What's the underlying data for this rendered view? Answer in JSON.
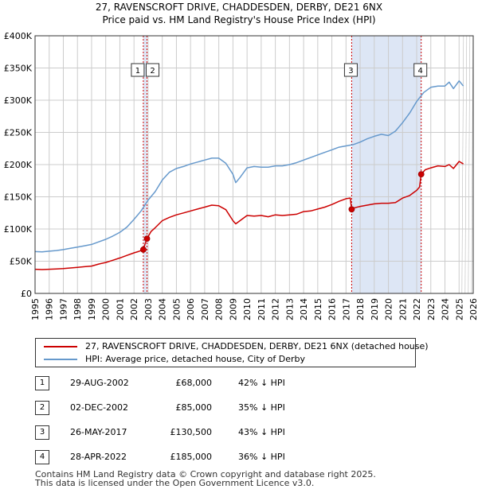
{
  "title_line1": "27, RAVENSCROFT DRIVE, CHADDESDEN, DERBY, DE21 6NX",
  "title_line2": "Price paid vs. HM Land Registry's House Price Index (HPI)",
  "colors": {
    "property": "#cc0000",
    "hpi": "#6699cc",
    "shade": "#dde6f5",
    "grid": "#cccccc",
    "vline": "#cc0000"
  },
  "legend": {
    "property_label": "27, RAVENSCROFT DRIVE, CHADDESDEN, DERBY, DE21 6NX (detached house)",
    "hpi_label": "HPI: Average price, detached house, City of Derby"
  },
  "sales": [
    {
      "num": "1",
      "date": "29-AUG-2002",
      "price": "£68,000",
      "hpi": "42% ↓ HPI"
    },
    {
      "num": "2",
      "date": "02-DEC-2002",
      "price": "£85,000",
      "hpi": "35% ↓ HPI"
    },
    {
      "num": "3",
      "date": "26-MAY-2017",
      "price": "£130,500",
      "hpi": "43% ↓ HPI"
    },
    {
      "num": "4",
      "date": "28-APR-2022",
      "price": "£185,000",
      "hpi": "36% ↓ HPI"
    }
  ],
  "footer": {
    "line1": "Contains HM Land Registry data © Crown copyright and database right 2025.",
    "line2": "This data is licensed under the Open Government Licence v3.0."
  },
  "chart_data": {
    "type": "line",
    "title": "27, RAVENSCROFT DRIVE, CHADDESDEN, DERBY, DE21 6NX",
    "subtitle": "Price paid vs. HM Land Registry's House Price Index (HPI)",
    "xlabel": "",
    "ylabel": "",
    "xlim": [
      1995,
      2026
    ],
    "ylim": [
      0,
      400000
    ],
    "y_ticks": [
      {
        "value": 0,
        "label": "£0"
      },
      {
        "value": 50000,
        "label": "£50K"
      },
      {
        "value": 100000,
        "label": "£100K"
      },
      {
        "value": 150000,
        "label": "£150K"
      },
      {
        "value": 200000,
        "label": "£200K"
      },
      {
        "value": 250000,
        "label": "£250K"
      },
      {
        "value": 300000,
        "label": "£300K"
      },
      {
        "value": 350000,
        "label": "£350K"
      },
      {
        "value": 400000,
        "label": "£400K"
      }
    ],
    "x_ticks": [
      "1995",
      "1996",
      "1997",
      "1998",
      "1999",
      "2000",
      "2001",
      "2002",
      "2003",
      "2004",
      "2005",
      "2006",
      "2007",
      "2008",
      "2009",
      "2010",
      "2011",
      "2012",
      "2013",
      "2014",
      "2015",
      "2016",
      "2017",
      "2018",
      "2019",
      "2020",
      "2021",
      "2022",
      "2023",
      "2024",
      "2025",
      "2026"
    ],
    "shaded_ranges": [
      [
        2002.66,
        2002.92
      ],
      [
        2017.4,
        2022.32
      ]
    ],
    "hatched_from": 2025.2,
    "markers": [
      {
        "label": "1",
        "x": 2002.66,
        "y": 68000
      },
      {
        "label": "2",
        "x": 2002.92,
        "y": 85000
      },
      {
        "label": "3",
        "x": 2017.4,
        "y": 130500
      },
      {
        "label": "4",
        "x": 2022.32,
        "y": 185000
      }
    ],
    "series": [
      {
        "name": "27, RAVENSCROFT DRIVE, CHADDESDEN, DERBY, DE21 6NX (detached house)",
        "x": [
          1995,
          1995.5,
          1996,
          1996.5,
          1997,
          1997.5,
          1998,
          1998.5,
          1999,
          1999.5,
          2000,
          2000.5,
          2001,
          2001.5,
          2002,
          2002.3,
          2002.66,
          2002.8,
          2002.92,
          2003.2,
          2003.5,
          2004,
          2004.5,
          2005,
          2005.5,
          2006,
          2006.5,
          2007,
          2007.5,
          2008,
          2008.5,
          2009,
          2009.2,
          2009.5,
          2010,
          2010.5,
          2011,
          2011.5,
          2012,
          2012.5,
          2013,
          2013.5,
          2014,
          2014.5,
          2015,
          2015.5,
          2016,
          2016.5,
          2017,
          2017.3,
          2017.4,
          2017.6,
          2018,
          2018.5,
          2019,
          2019.5,
          2020,
          2020.5,
          2021,
          2021.5,
          2022,
          2022.2,
          2022.32,
          2022.6,
          2023,
          2023.5,
          2024,
          2024.3,
          2024.6,
          2025,
          2025.3
        ],
        "values": [
          37500,
          37000,
          37500,
          38000,
          38500,
          39500,
          40500,
          41500,
          42500,
          45500,
          48000,
          51500,
          55000,
          59000,
          63000,
          65000,
          68000,
          78000,
          85000,
          96000,
          102000,
          113000,
          118000,
          122000,
          125000,
          128000,
          131000,
          134000,
          137000,
          136000,
          130000,
          113000,
          108000,
          113000,
          121000,
          120000,
          121000,
          119000,
          122000,
          121000,
          122000,
          123000,
          127000,
          128000,
          131000,
          134000,
          138000,
          143000,
          147000,
          148000,
          130500,
          133000,
          135000,
          137000,
          139000,
          140000,
          140000,
          141000,
          148000,
          152000,
          160000,
          165000,
          185000,
          192000,
          195000,
          198000,
          197000,
          200000,
          194000,
          205000,
          201000
        ]
      },
      {
        "name": "HPI: Average price, detached house, City of Derby",
        "x": [
          1995,
          1995.5,
          1996,
          1996.5,
          1997,
          1997.5,
          1998,
          1998.5,
          1999,
          1999.5,
          2000,
          2000.5,
          2001,
          2001.5,
          2002,
          2002.5,
          2003,
          2003.5,
          2004,
          2004.5,
          2005,
          2005.5,
          2006,
          2006.5,
          2007,
          2007.5,
          2008,
          2008.5,
          2009,
          2009.2,
          2009.5,
          2010,
          2010.5,
          2011,
          2011.5,
          2012,
          2012.5,
          2013,
          2013.5,
          2014,
          2014.5,
          2015,
          2015.5,
          2016,
          2016.5,
          2017,
          2017.5,
          2018,
          2018.5,
          2019,
          2019.5,
          2020,
          2020.5,
          2021,
          2021.5,
          2022,
          2022.5,
          2023,
          2023.5,
          2024,
          2024.3,
          2024.6,
          2025,
          2025.3
        ],
        "values": [
          65000,
          64500,
          65500,
          66500,
          68000,
          70000,
          72000,
          74000,
          76000,
          80000,
          84000,
          89000,
          95000,
          103000,
          115000,
          128000,
          145000,
          158000,
          176000,
          188000,
          194000,
          197000,
          201000,
          204000,
          207000,
          210000,
          210000,
          202000,
          185000,
          172000,
          180000,
          195000,
          197000,
          196000,
          196000,
          198000,
          198000,
          200000,
          203000,
          207000,
          211000,
          215000,
          219000,
          223000,
          227000,
          229000,
          231000,
          235000,
          240000,
          244000,
          247000,
          245000,
          252000,
          265000,
          280000,
          298000,
          312000,
          320000,
          322000,
          322000,
          328000,
          318000,
          330000,
          322000
        ]
      }
    ]
  }
}
